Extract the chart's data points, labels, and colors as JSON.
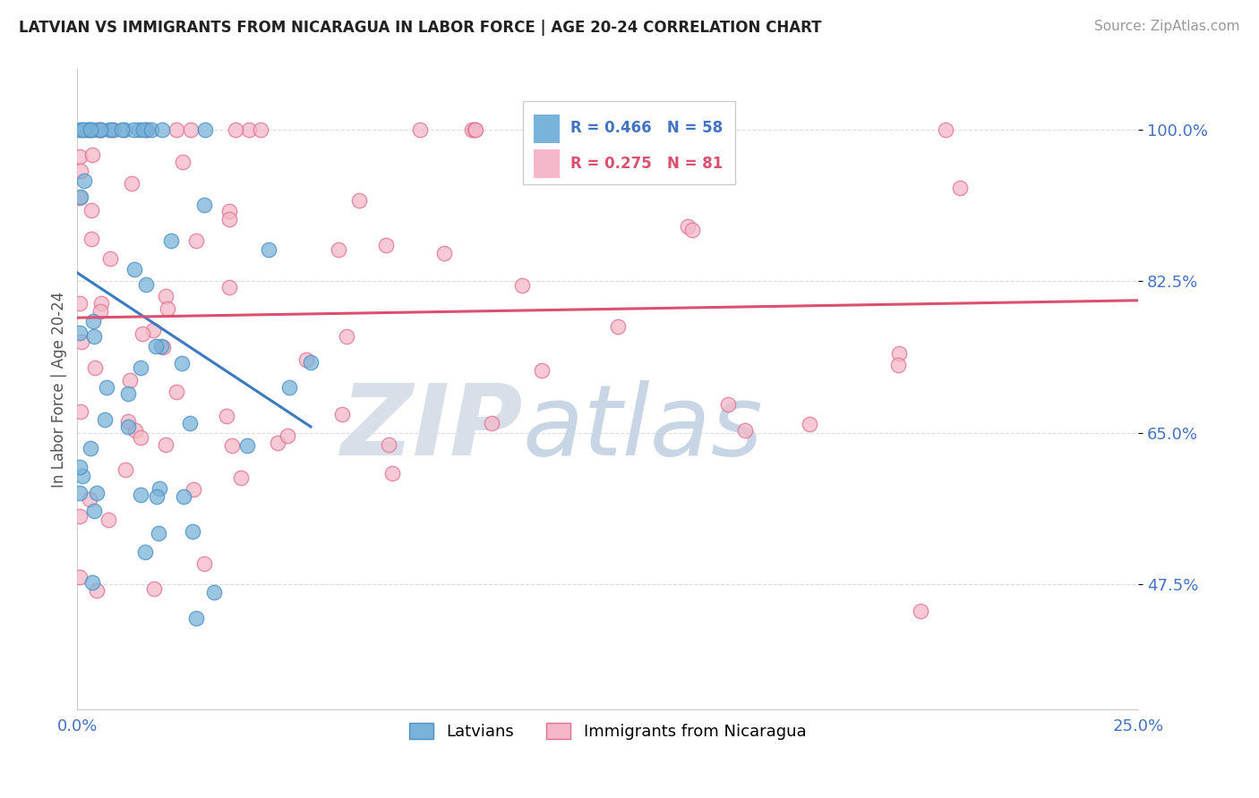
{
  "title": "LATVIAN VS IMMIGRANTS FROM NICARAGUA IN LABOR FORCE | AGE 20-24 CORRELATION CHART",
  "source": "Source: ZipAtlas.com",
  "xlim": [
    0.0,
    25.0
  ],
  "ylim": [
    33.0,
    107.0
  ],
  "ylabel_ticks": [
    47.5,
    65.0,
    82.5,
    100.0
  ],
  "ylabel_tick_labels": [
    "47.5%",
    "65.0%",
    "82.5%",
    "100.0%"
  ],
  "series_blue": {
    "label": "Latvians",
    "R": 0.466,
    "N": 58,
    "color": "#7ab3d9",
    "edge_color": "#4a90c4"
  },
  "series_pink": {
    "label": "Immigrants from Nicaragua",
    "R": 0.275,
    "N": 81,
    "color": "#f4b8c8",
    "edge_color": "#e07090"
  },
  "trend_blue": "#3a7abf",
  "trend_pink": "#d95070",
  "watermark_zip": "ZIP",
  "watermark_atlas": "atlas",
  "watermark_color": "#d8dfe8",
  "background_color": "#ffffff",
  "grid_color": "#dddddd",
  "title_color": "#222222",
  "source_color": "#999999",
  "tick_label_color": "#4472c4",
  "legend_text_color_blue": "#4472c4",
  "legend_text_color_pink": "#d95070"
}
